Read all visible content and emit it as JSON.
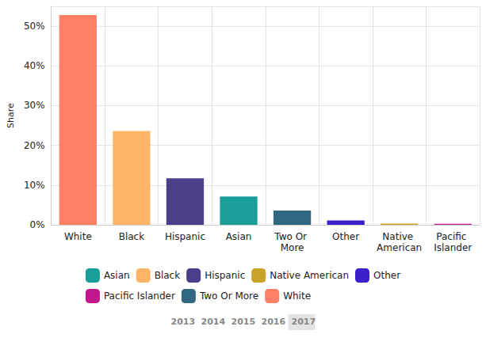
{
  "chart_data": {
    "type": "bar",
    "y_label": "Share",
    "categories": [
      "White",
      "Black",
      "Hispanic",
      "Asian",
      "Two Or More",
      "Other",
      "Native American",
      "Pacific Islander"
    ],
    "values": [
      52.8,
      23.6,
      11.7,
      7.1,
      3.6,
      1.1,
      0.3,
      0.25
    ],
    "colors": [
      "#ff8066",
      "#ffb466",
      "#4b3f8c",
      "#1a9e9a",
      "#2f6880",
      "#3b1fc9",
      "#c9a227",
      "#c2178a"
    ],
    "ylim": [
      0,
      55
    ],
    "yticks": [
      {
        "value": 0,
        "label": "0%"
      },
      {
        "value": 10,
        "label": "10%"
      },
      {
        "value": 20,
        "label": "20%"
      },
      {
        "value": 30,
        "label": "30%"
      },
      {
        "value": 40,
        "label": "40%"
      },
      {
        "value": 50,
        "label": "50%"
      }
    ],
    "grid": true,
    "legend": "bottom",
    "years": [
      "2013",
      "2014",
      "2015",
      "2016",
      "2017"
    ],
    "selected_year": "2017"
  }
}
